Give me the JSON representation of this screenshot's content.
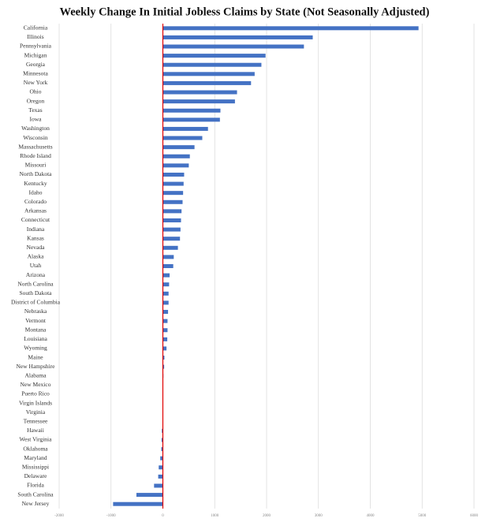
{
  "chart_data": {
    "type": "bar",
    "title": "Weekly Change In Initial Jobless Claims by State (Not Seasonally Adjusted)",
    "categories": [
      "California",
      "Illinois",
      "Pennsylvania",
      "Michigan",
      "Georgia",
      "Minnesota",
      "New York",
      "Ohio",
      "Oregon",
      "Texas",
      "Iowa",
      "Washington",
      "Wisconsin",
      "Massachusetts",
      "Rhode Island",
      "Missouri",
      "North Dakota",
      "Kentucky",
      "Idaho",
      "Colorado",
      "Arkansas",
      "Connecticut",
      "Indiana",
      "Kansas",
      "Nevada",
      "Alaska",
      "Utah",
      "Arizona",
      "North Carolina",
      "South Dakota",
      "District of Columbia",
      "Nebraska",
      "Vermont",
      "Montana",
      "Louisiana",
      "Wyoming",
      "Maine",
      "New Hampshire",
      "Alabama",
      "New Mexico",
      "Puerto Rico",
      "Virgin Islands",
      "Virginia",
      "Tennessee",
      "Hawaii",
      "West Virginia",
      "Oklahoma",
      "Maryland",
      "Mississippi",
      "Delaware",
      "Florida",
      "South Carolina",
      "New Jersey"
    ],
    "values": [
      4930,
      2890,
      2720,
      1980,
      1900,
      1770,
      1700,
      1430,
      1390,
      1110,
      1100,
      870,
      760,
      610,
      520,
      500,
      410,
      400,
      390,
      380,
      360,
      350,
      340,
      330,
      290,
      210,
      200,
      130,
      120,
      110,
      110,
      100,
      90,
      90,
      85,
      70,
      30,
      25,
      10,
      5,
      2,
      0,
      0,
      -5,
      -20,
      -25,
      -30,
      -50,
      -80,
      -90,
      -170,
      -510,
      -960
    ],
    "color": "#4472c4",
    "xlim": [
      -2000,
      6000
    ],
    "xticks": [
      -2000,
      -1000,
      0,
      1000,
      2000,
      3000,
      4000,
      5000,
      6000
    ],
    "grid": true,
    "zero_line_color": "#e00000"
  }
}
